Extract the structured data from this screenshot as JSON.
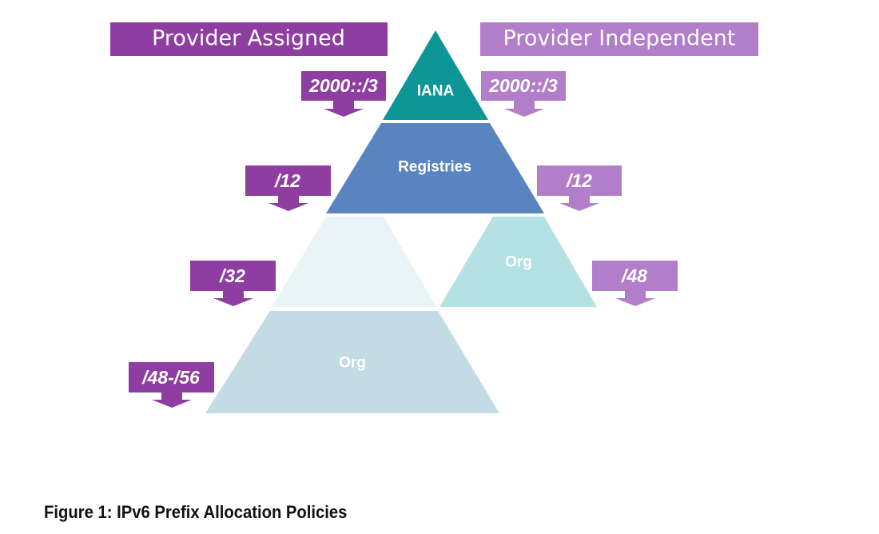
{
  "banners": {
    "provider_assigned": "Provider Assigned",
    "provider_independent": "Provider Independent"
  },
  "tiers": {
    "iana": "IANA",
    "registries": "Registries",
    "pa_org": "Org",
    "pi_org": "Org"
  },
  "prefixes": {
    "pa_top": "2000::/3",
    "pi_top": "2000::/3",
    "pa_registry": "/12",
    "pi_registry": "/12",
    "pa_lir": "/32",
    "pi_org": "/48",
    "pa_org": "/48-/56"
  },
  "caption": "Figure 1: IPv6 Prefix Allocation Policies",
  "colors": {
    "pa_purple": "#8e3ea1",
    "pi_purple": "#b27dc9",
    "iana_teal": "#0e9696",
    "registries_blue": "#5a84c0",
    "lir_pale": "#e8f4f6",
    "pa_org": "#c3dbe4",
    "pi_org": "#b5e0e4"
  }
}
